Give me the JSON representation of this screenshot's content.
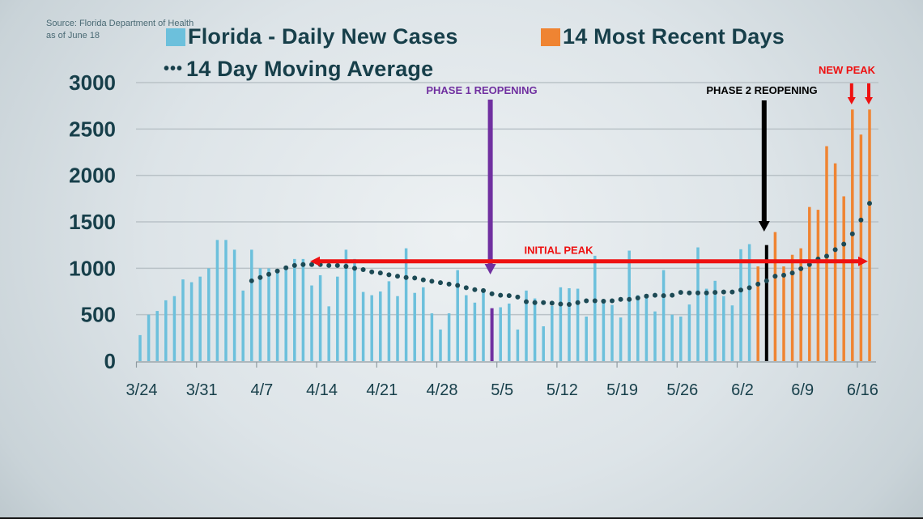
{
  "source": {
    "line1": "Source: Florida Department of Health",
    "line2": "as of June 18"
  },
  "colors": {
    "daily": "#6cc0dc",
    "recent": "#ef8432",
    "ma": "#1d4a55",
    "phase1": "#7030a0",
    "phase2": "#000000",
    "peak": "#ee1111",
    "text": "#173f4a"
  },
  "chart_data": {
    "type": "bar",
    "title": "",
    "xlabel": "",
    "ylabel": "",
    "ylim": [
      0,
      3000
    ],
    "yticks": [
      0,
      500,
      1000,
      1500,
      2000,
      2500,
      3000
    ],
    "ytick_labels": [
      "0",
      "500",
      "1000",
      "1500",
      "2000",
      "2500",
      "3000"
    ],
    "grid": true,
    "start_date": "3/24",
    "xtick_labels": [
      "3/24",
      "3/31",
      "4/7",
      "4/14",
      "4/21",
      "4/28",
      "5/5",
      "5/12",
      "5/19",
      "5/26",
      "6/2",
      "6/9",
      "6/16"
    ],
    "legend": [
      {
        "label": "Florida - Daily New Cases",
        "type": "bar",
        "color": "#6cc0dc"
      },
      {
        "label": "14 Most Recent Days",
        "type": "bar",
        "color": "#ef8432"
      },
      {
        "label": "14 Day Moving Average",
        "type": "dotted-line",
        "color": "#1d4a55"
      }
    ],
    "legend_position": "top",
    "series": [
      {
        "name": "Florida - Daily New Cases",
        "values": [
          280,
          500,
          540,
          655,
          700,
          880,
          850,
          910,
          1000,
          1305,
          1305,
          1200,
          760,
          1200,
          1000,
          1000,
          990,
          990,
          1100,
          1100,
          815,
          925,
          590,
          910,
          1200,
          1100,
          745,
          710,
          750,
          860,
          700,
          1215,
          735,
          795,
          515,
          340,
          515,
          980,
          710,
          630,
          770,
          570,
          580,
          620,
          340,
          760,
          675,
          375,
          595,
          795,
          785,
          780,
          480,
          1135,
          655,
          605,
          470,
          1190,
          710,
          720,
          535,
          980,
          500,
          480,
          610,
          1225,
          780,
          865,
          700,
          600,
          1205,
          1260,
          1020,
          1250,
          1390,
          1020,
          1145,
          1215,
          1660,
          1630,
          2315,
          2130,
          1775,
          2710,
          2440,
          2710
        ],
        "recent_start_index": 72
      },
      {
        "name": "14 Day Moving Average",
        "start_index": 13,
        "values": [
          865,
          900,
          935,
          970,
          1005,
          1030,
          1040,
          1040,
          1040,
          1030,
          1030,
          1020,
          1000,
          985,
          960,
          950,
          930,
          915,
          900,
          895,
          875,
          860,
          845,
          830,
          815,
          790,
          770,
          760,
          725,
          710,
          705,
          690,
          640,
          630,
          630,
          625,
          615,
          610,
          630,
          650,
          650,
          645,
          650,
          665,
          665,
          680,
          700,
          710,
          705,
          710,
          740,
          735,
          735,
          735,
          740,
          745,
          745,
          765,
          790,
          830,
          865,
          915,
          925,
          950,
          995,
          1040,
          1100,
          1130,
          1200,
          1260,
          1370,
          1520,
          1700
        ]
      }
    ],
    "annotations": [
      {
        "label": "PHASE 1 REOPENING",
        "type": "vertical-arrow",
        "index": 41,
        "color": "#7030a0",
        "highlight_bar": true
      },
      {
        "label": "PHASE 2 REOPENING",
        "type": "vertical-arrow",
        "index": 73,
        "color": "#000000",
        "highlight_bar": true
      },
      {
        "label": "INITIAL PEAK",
        "type": "horizontal-arrow",
        "value": 1075,
        "from_index": 20,
        "to_index": 85,
        "color": "#ee1111"
      },
      {
        "label": "NEW PEAK",
        "type": "down-arrows",
        "indices": [
          83,
          85
        ],
        "color": "#ee1111"
      }
    ]
  }
}
